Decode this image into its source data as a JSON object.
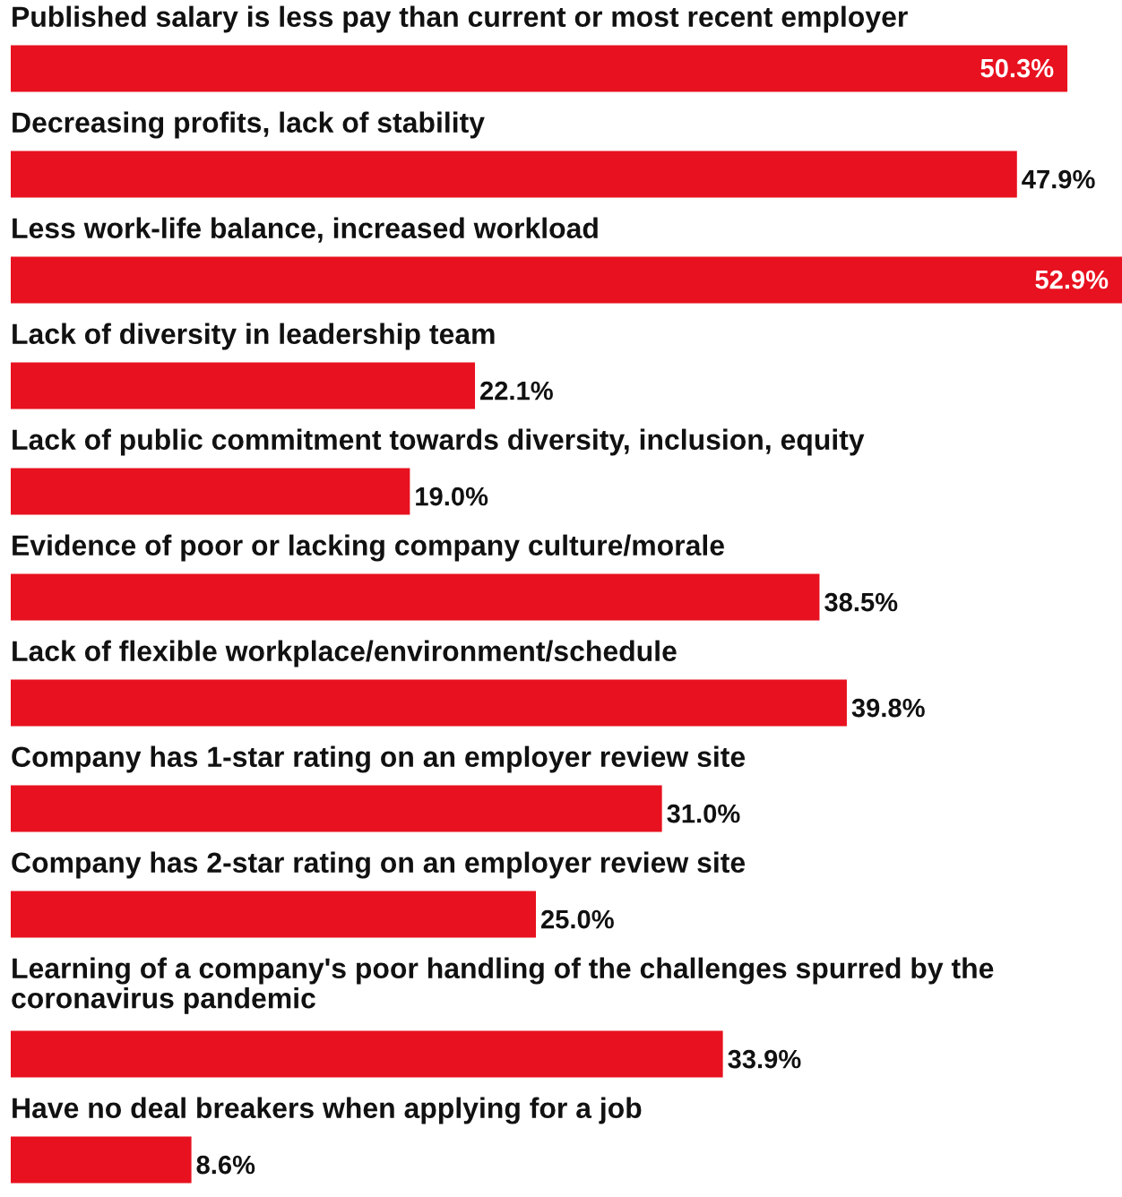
{
  "chart_data": {
    "type": "bar",
    "orientation": "horizontal",
    "categories": [
      "Published salary is less pay than current or most recent employer",
      "Decreasing profits, lack of stability",
      "Less work-life balance, increased workload",
      "Lack of diversity in leadership team",
      "Lack of public commitment towards diversity, inclusion, equity",
      "Evidence of poor or lacking company culture/morale",
      "Lack of flexible workplace/environment/schedule",
      "Company has 1-star rating on an employer review site",
      "Company has 2-star rating on an employer review site",
      "Learning of a company's poor handling of the challenges spurred by the coronavirus pandemic",
      "Have no deal breakers when applying for a job"
    ],
    "values": [
      50.3,
      47.9,
      52.9,
      22.1,
      19.0,
      38.5,
      39.8,
      31.0,
      25.0,
      33.9,
      8.6
    ],
    "value_labels": [
      "50.3%",
      "47.9%",
      "52.9%",
      "22.1%",
      "19.0%",
      "38.5%",
      "39.8%",
      "31.0%",
      "25.0%",
      "33.9%",
      "8.6%"
    ],
    "color": "#e8111f"
  }
}
